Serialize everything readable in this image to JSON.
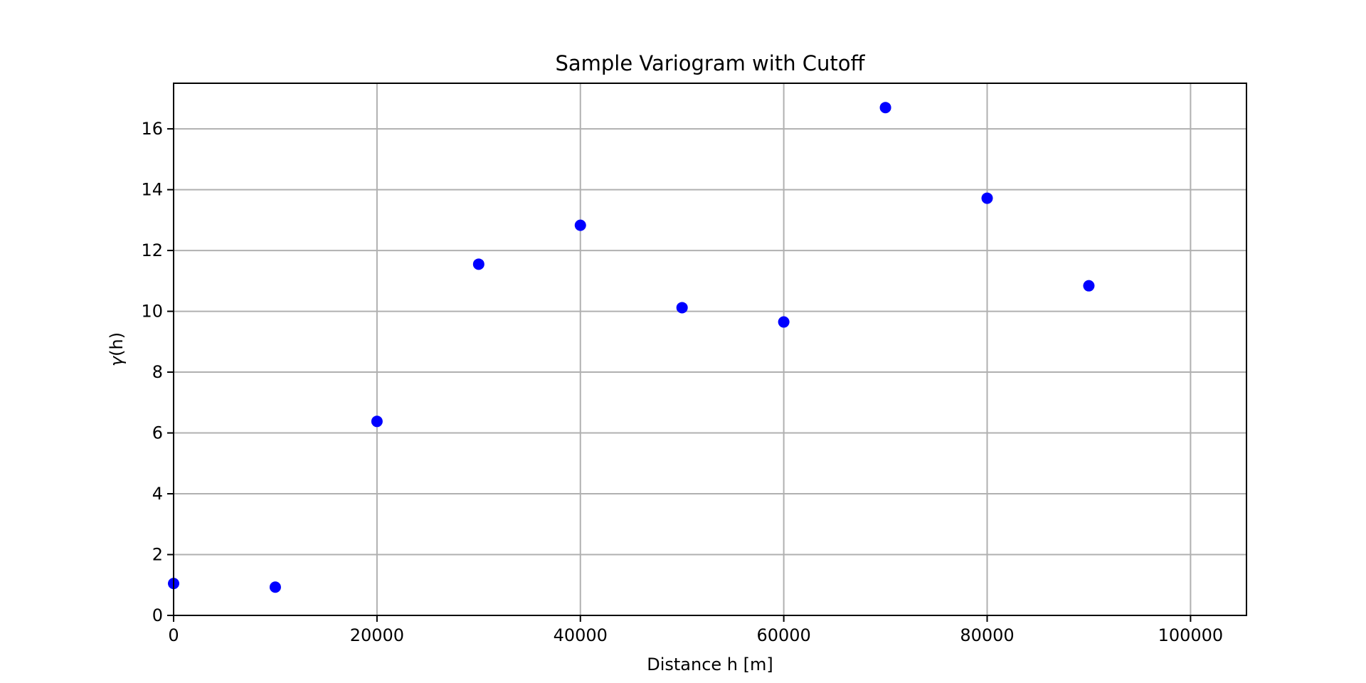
{
  "chart_data": {
    "type": "scatter",
    "title": "Sample Variogram with Cutoff",
    "xlabel": "Distance h [m]",
    "ylabel_main": "γ",
    "ylabel_paren": "(h)",
    "xlim": [
      0,
      105500
    ],
    "ylim": [
      0,
      17.5
    ],
    "grid": true,
    "x_ticks": [
      0,
      20000,
      40000,
      60000,
      80000,
      100000
    ],
    "y_ticks": [
      0,
      2,
      4,
      6,
      8,
      10,
      12,
      14,
      16
    ],
    "series": [
      {
        "color": "#0000ff",
        "x": [
          0,
          10000,
          20000,
          30000,
          40000,
          50000,
          60000,
          70000,
          80000,
          90000
        ],
        "y": [
          1.05,
          0.93,
          6.38,
          11.55,
          12.83,
          10.12,
          9.65,
          16.7,
          13.72,
          10.84
        ]
      }
    ]
  }
}
